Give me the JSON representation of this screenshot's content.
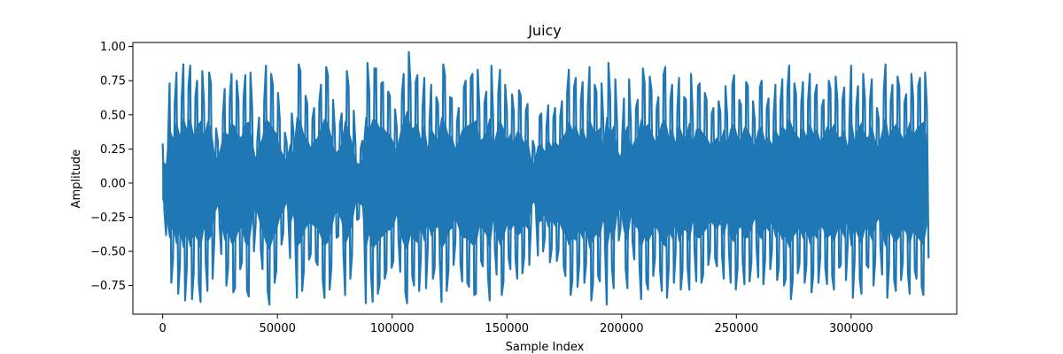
{
  "chart_data": {
    "type": "line",
    "title": "Juicy",
    "xlabel": "Sample Index",
    "ylabel": "Amplitude",
    "xlim": [
      -13000,
      346000
    ],
    "ylim": [
      -0.96,
      1.03
    ],
    "x_ticks": [
      0,
      50000,
      100000,
      150000,
      200000,
      250000,
      300000
    ],
    "x_tick_labels": [
      "0",
      "50000",
      "100000",
      "150000",
      "200000",
      "250000",
      "300000"
    ],
    "y_ticks": [
      -0.75,
      -0.5,
      -0.25,
      0.0,
      0.25,
      0.5,
      0.75,
      1.0
    ],
    "y_tick_labels": [
      "−0.75",
      "−0.50",
      "−0.25",
      "0.00",
      "0.25",
      "0.50",
      "0.75",
      "1.00"
    ],
    "grid": false,
    "series": [
      {
        "color": "#1f77b4",
        "x_start": 0,
        "x_step": 1500,
        "min": [
          -0.21,
          -0.38,
          -0.73,
          -0.55,
          -0.81,
          -0.6,
          -0.86,
          -0.62,
          -0.85,
          -0.66,
          -0.74,
          -0.87,
          -0.58,
          -0.79,
          -0.7,
          -0.41,
          -0.29,
          -0.52,
          -0.75,
          -0.62,
          -0.8,
          -0.77,
          -0.63,
          -0.58,
          -0.79,
          -0.83,
          -0.5,
          -0.3,
          -0.48,
          -0.63,
          -0.79,
          -0.89,
          -0.73,
          -0.64,
          -0.45,
          -0.37,
          -0.25,
          -0.55,
          -0.4,
          -0.84,
          -0.79,
          -0.64,
          -0.56,
          -0.52,
          -0.57,
          -0.6,
          -0.71,
          -0.84,
          -0.78,
          -0.62,
          -0.4,
          -0.39,
          -0.5,
          -0.82,
          -0.7,
          -0.53,
          -0.27,
          -0.26,
          -0.3,
          -0.88,
          -0.66,
          -0.87,
          -0.81,
          -0.74,
          -0.7,
          -0.64,
          -0.62,
          -0.57,
          -0.41,
          -0.65,
          -0.8,
          -0.88,
          -0.68,
          -0.75,
          -0.79,
          -0.55,
          -0.77,
          -0.48,
          -0.7,
          -0.62,
          -0.57,
          -0.87,
          -0.79,
          -0.64,
          -0.6,
          -0.44,
          -0.59,
          -0.72,
          -0.73,
          -0.76,
          -0.82,
          -0.81,
          -0.57,
          -0.61,
          -0.68,
          -0.86,
          -0.48,
          -0.67,
          -0.82,
          -0.72,
          -0.55,
          -0.63,
          -0.55,
          -0.7,
          -0.66,
          -0.54,
          -0.6,
          -0.3,
          -0.24,
          -0.53,
          -0.5,
          -0.4,
          -0.58,
          -0.48,
          -0.57,
          -0.49,
          -0.61,
          -0.68,
          -0.82,
          -0.72,
          -0.76,
          -0.6,
          -0.73,
          -0.59,
          -0.86,
          -0.74,
          -0.68,
          -0.72,
          -0.46,
          -0.89,
          -0.62,
          -0.77,
          -0.42,
          -0.33,
          -0.63,
          -0.77,
          -0.43,
          -0.56,
          -0.6,
          -0.85,
          -0.72,
          -0.78,
          -0.68,
          -0.55,
          -0.64,
          -0.79,
          -0.84,
          -0.62,
          -0.73,
          -0.51,
          -0.78,
          -0.64,
          -0.62,
          -0.78,
          -0.49,
          -0.72,
          -0.73,
          -0.67,
          -0.6,
          -0.5,
          -0.55,
          -0.61,
          -0.53,
          -0.7,
          -0.5,
          -0.73,
          -0.78,
          -0.62,
          -0.58,
          -0.74,
          -0.72,
          -0.59,
          -0.46,
          -0.69,
          -0.74,
          -0.56,
          -0.63,
          -0.49,
          -0.71,
          -0.61,
          -0.75,
          -0.7,
          -0.85,
          -0.72,
          -0.66,
          -0.59,
          -0.73,
          -0.6,
          -0.8,
          -0.66,
          -0.73,
          -0.55,
          -0.62,
          -0.74,
          -0.68,
          -0.78,
          -0.62,
          -0.6,
          -0.71,
          -0.45,
          -0.84,
          -0.57,
          -0.7,
          -0.81,
          -0.6,
          -0.62,
          -0.75,
          -0.56,
          -0.46,
          -0.67,
          -0.84,
          -0.61,
          -0.71,
          -0.79,
          -0.71,
          -0.58,
          -0.66,
          -0.81,
          -0.64,
          -0.7,
          -0.76,
          -0.82,
          -0.55
        ],
        "max": [
          0.29,
          0.24,
          0.73,
          0.58,
          0.81,
          0.62,
          0.87,
          0.71,
          0.86,
          0.63,
          0.75,
          0.82,
          0.58,
          0.81,
          0.73,
          0.4,
          0.31,
          0.5,
          0.69,
          0.63,
          0.8,
          0.75,
          0.6,
          0.62,
          0.79,
          0.81,
          0.54,
          0.32,
          0.48,
          0.6,
          0.86,
          0.8,
          0.72,
          0.66,
          0.47,
          0.37,
          0.3,
          0.51,
          0.37,
          0.87,
          0.82,
          0.64,
          0.58,
          0.47,
          0.55,
          0.6,
          0.72,
          0.85,
          0.79,
          0.61,
          0.39,
          0.43,
          0.51,
          0.82,
          0.71,
          0.53,
          0.28,
          0.25,
          0.31,
          0.88,
          0.67,
          0.84,
          0.84,
          0.73,
          0.74,
          0.67,
          0.64,
          0.54,
          0.41,
          0.65,
          0.8,
          0.96,
          0.72,
          0.74,
          0.79,
          0.56,
          0.77,
          0.44,
          0.72,
          0.63,
          0.58,
          0.87,
          0.79,
          0.63,
          0.62,
          0.45,
          0.55,
          0.7,
          0.75,
          0.77,
          0.8,
          0.83,
          0.56,
          0.59,
          0.67,
          0.86,
          0.47,
          0.66,
          0.83,
          0.72,
          0.53,
          0.65,
          0.52,
          0.68,
          0.64,
          0.53,
          0.58,
          0.31,
          0.26,
          0.49,
          0.51,
          0.41,
          0.57,
          0.48,
          0.55,
          0.49,
          0.6,
          0.66,
          0.83,
          0.7,
          0.77,
          0.61,
          0.74,
          0.56,
          0.85,
          0.72,
          0.67,
          0.73,
          0.45,
          0.88,
          0.63,
          0.76,
          0.44,
          0.34,
          0.62,
          0.76,
          0.44,
          0.55,
          0.61,
          0.84,
          0.73,
          0.78,
          0.68,
          0.55,
          0.63,
          0.79,
          0.85,
          0.61,
          0.72,
          0.52,
          0.77,
          0.63,
          0.61,
          0.8,
          0.48,
          0.71,
          0.73,
          0.66,
          0.61,
          0.51,
          0.55,
          0.6,
          0.52,
          0.71,
          0.49,
          0.72,
          0.79,
          0.61,
          0.57,
          0.74,
          0.71,
          0.6,
          0.46,
          0.7,
          0.75,
          0.55,
          0.62,
          0.5,
          0.72,
          0.6,
          0.76,
          0.69,
          0.86,
          0.73,
          0.65,
          0.58,
          0.74,
          0.61,
          0.8,
          0.65,
          0.72,
          0.56,
          0.61,
          0.75,
          0.69,
          0.78,
          0.61,
          0.61,
          0.7,
          0.46,
          0.86,
          0.56,
          0.71,
          0.8,
          0.61,
          0.61,
          0.76,
          0.55,
          0.47,
          0.68,
          0.87,
          0.6,
          0.72,
          0.78,
          0.7,
          0.59,
          0.65,
          0.8,
          0.63,
          0.71,
          0.77,
          0.81,
          0.56
        ]
      }
    ]
  }
}
